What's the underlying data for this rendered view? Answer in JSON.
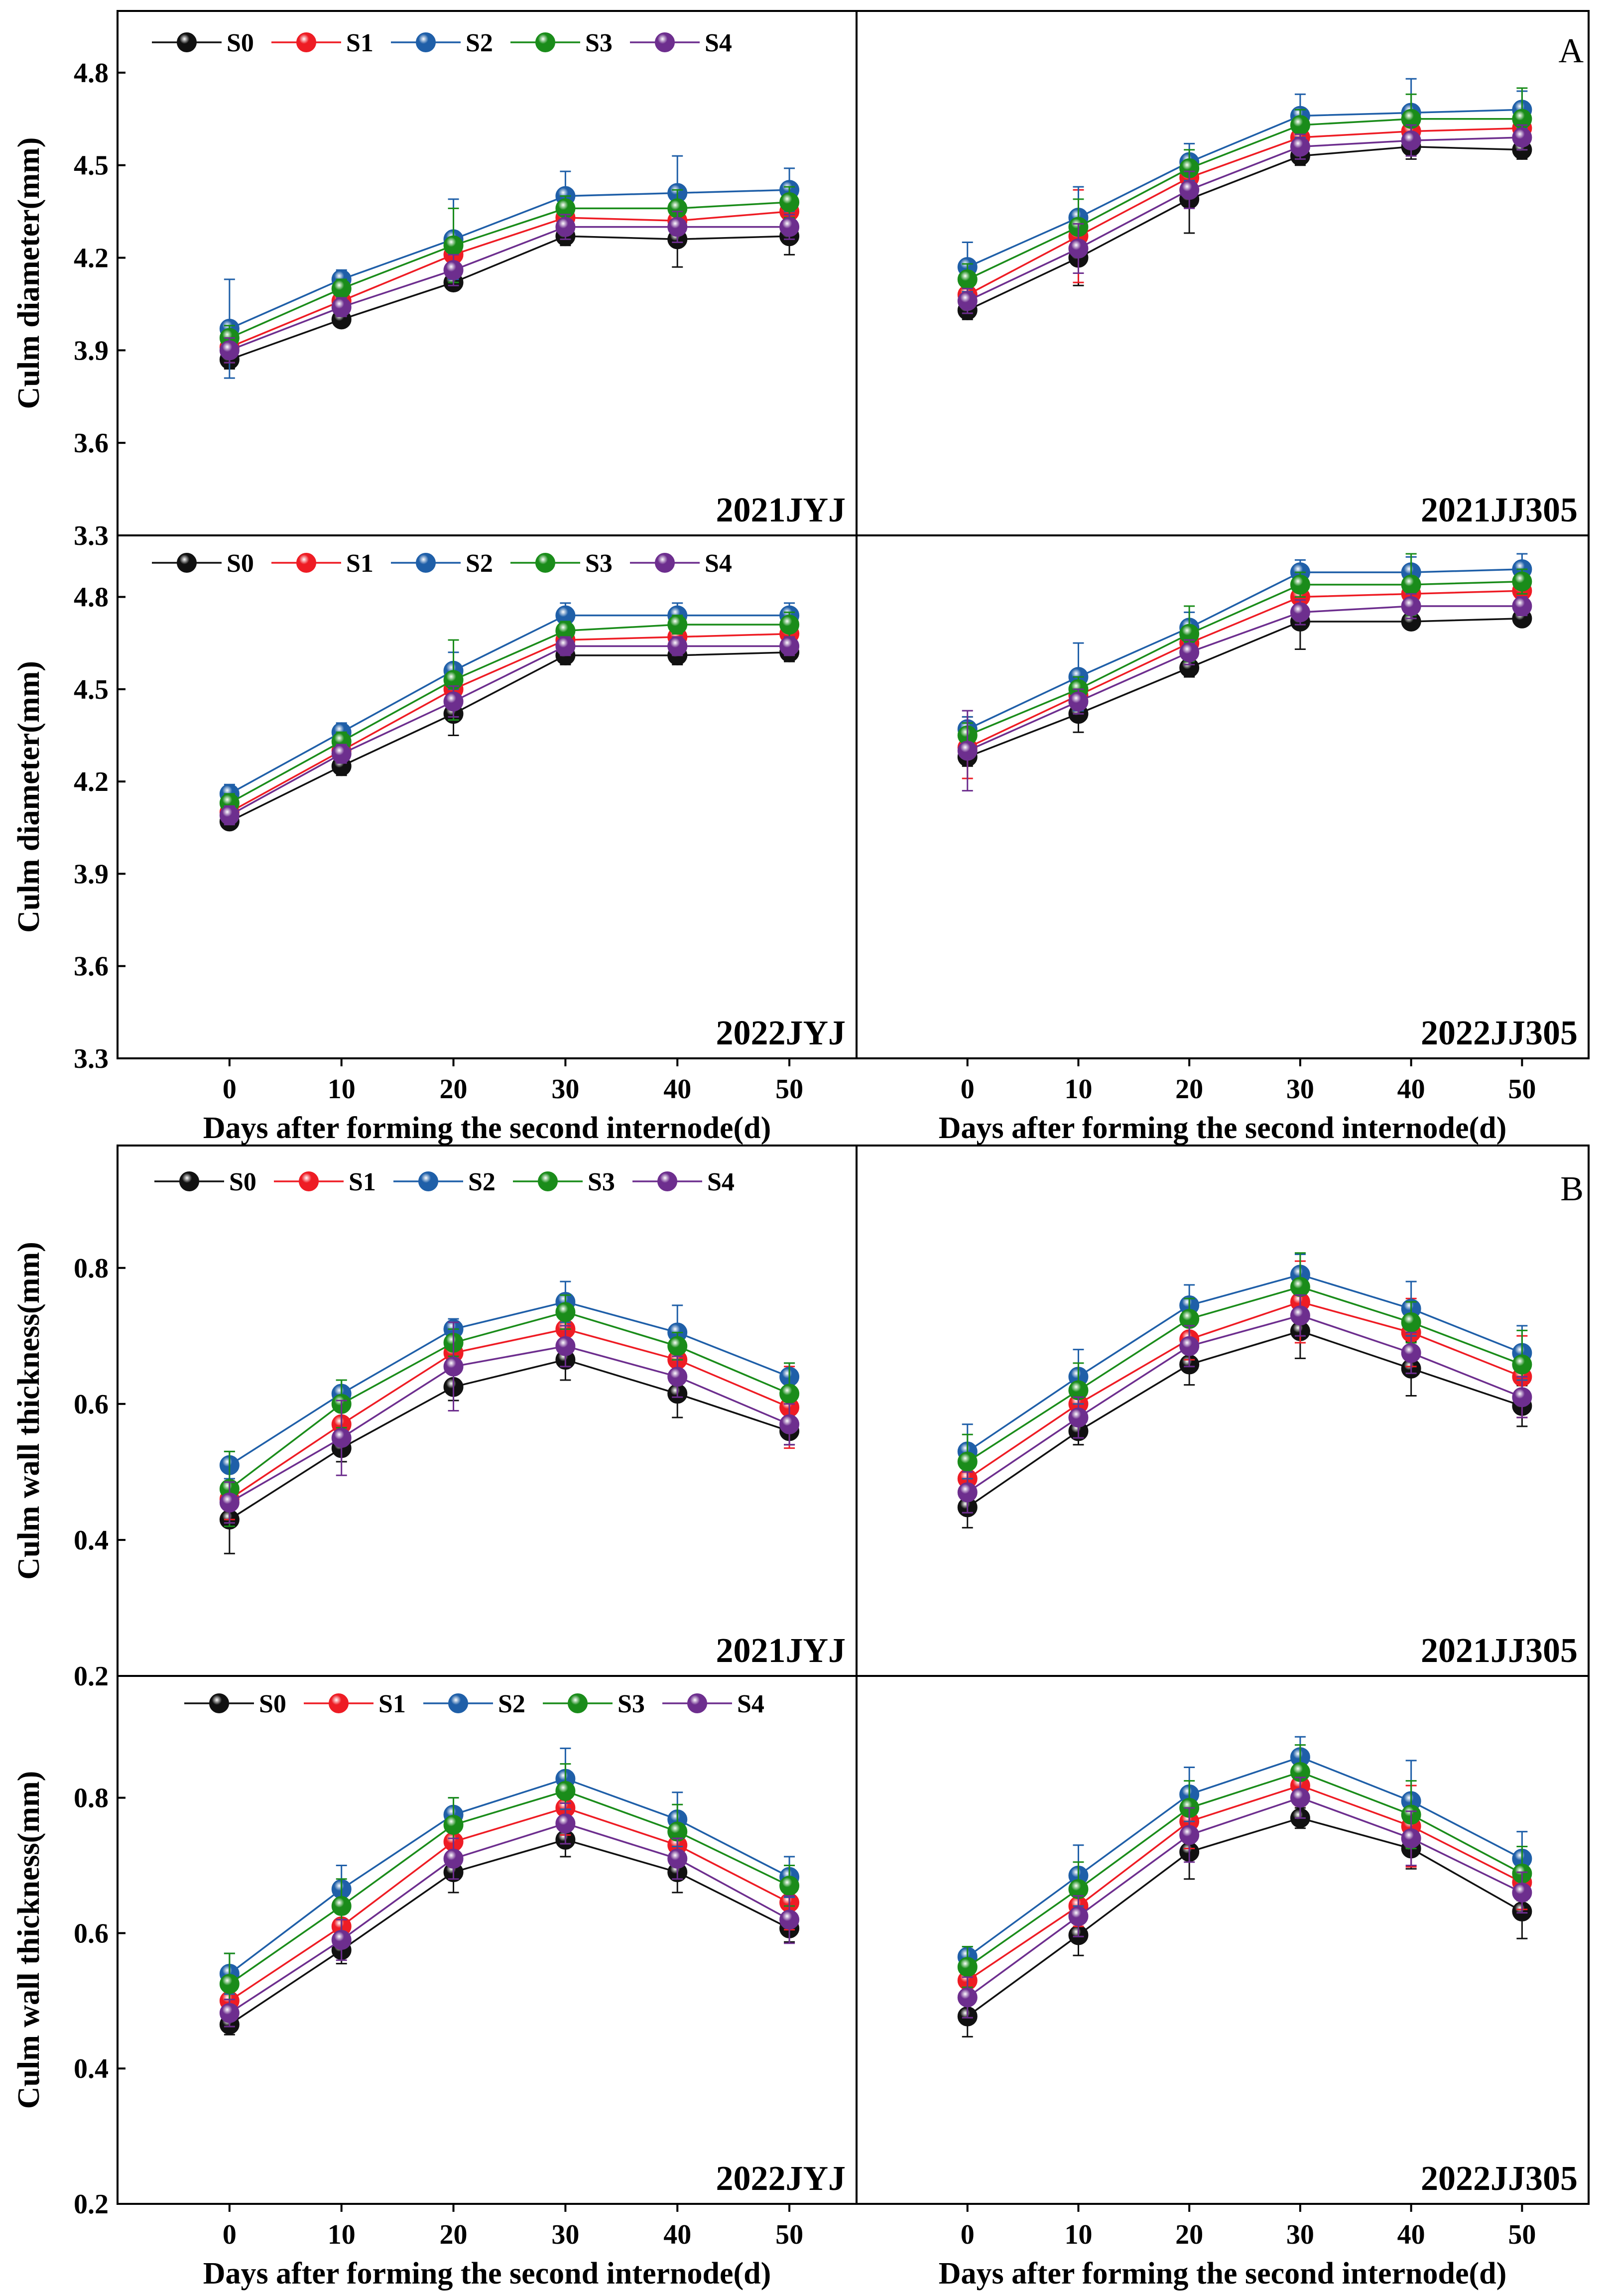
{
  "figure": {
    "section_labels": [
      "A",
      "B"
    ],
    "colors": {
      "S0": "#111111",
      "S1": "#ee1c24",
      "S2": "#1f5fa8",
      "S3": "#1a8c1a",
      "S4": "#6d2e8e"
    }
  },
  "chart_data": [
    {
      "id": "A-2021JYJ",
      "type": "line",
      "title": "2021JYJ",
      "xlabel": "",
      "ylabel": "Culm diameter(mm)",
      "x": [
        0,
        10,
        20,
        30,
        40,
        50
      ],
      "xlim": [
        -10,
        56
      ],
      "ylim": [
        3.3,
        5.0
      ],
      "yticks": [
        "3.3",
        "3.6",
        "3.9",
        "4.2",
        "4.5",
        "4.8"
      ],
      "legend": [
        "S0",
        "S1",
        "S2",
        "S3",
        "S4"
      ],
      "series": [
        {
          "name": "S0",
          "values": [
            3.87,
            4.0,
            4.12,
            4.27,
            4.26,
            4.27
          ],
          "errors": [
            0.03,
            0.02,
            0.02,
            0.03,
            0.09,
            0.06
          ]
        },
        {
          "name": "S1",
          "values": [
            3.91,
            4.06,
            4.21,
            4.33,
            4.32,
            4.35
          ],
          "errors": [
            0.05,
            0.02,
            0.04,
            0.03,
            0.04,
            0.04
          ]
        },
        {
          "name": "S2",
          "values": [
            3.97,
            4.13,
            4.26,
            4.4,
            4.41,
            4.42
          ],
          "errors": [
            0.16,
            0.03,
            0.13,
            0.08,
            0.12,
            0.07
          ]
        },
        {
          "name": "S3",
          "values": [
            3.94,
            4.1,
            4.24,
            4.36,
            4.36,
            4.38
          ],
          "errors": [
            0.04,
            0.03,
            0.12,
            0.04,
            0.06,
            0.05
          ]
        },
        {
          "name": "S4",
          "values": [
            3.9,
            4.04,
            4.16,
            4.3,
            4.3,
            4.3
          ],
          "errors": [
            0.04,
            0.03,
            0.05,
            0.04,
            0.05,
            0.04
          ]
        }
      ]
    },
    {
      "id": "A-2021JJ305",
      "type": "line",
      "title": "2021JJ305",
      "xlabel": "",
      "ylabel": "",
      "x": [
        0,
        10,
        20,
        30,
        40,
        50
      ],
      "xlim": [
        -10,
        56
      ],
      "ylim": [
        3.3,
        5.0
      ],
      "yticks": [],
      "series": [
        {
          "name": "S0",
          "values": [
            4.03,
            4.2,
            4.39,
            4.53,
            4.56,
            4.55
          ],
          "errors": [
            0.03,
            0.09,
            0.11,
            0.03,
            0.04,
            0.03
          ]
        },
        {
          "name": "S1",
          "values": [
            4.08,
            4.27,
            4.46,
            4.59,
            4.61,
            4.62
          ],
          "errors": [
            0.04,
            0.15,
            0.05,
            0.04,
            0.04,
            0.04
          ]
        },
        {
          "name": "S2",
          "values": [
            4.17,
            4.33,
            4.51,
            4.66,
            4.67,
            4.68
          ],
          "errors": [
            0.08,
            0.1,
            0.06,
            0.07,
            0.11,
            0.06
          ]
        },
        {
          "name": "S3",
          "values": [
            4.13,
            4.3,
            4.49,
            4.63,
            4.65,
            4.65
          ],
          "errors": [
            0.05,
            0.09,
            0.06,
            0.05,
            0.08,
            0.1
          ]
        },
        {
          "name": "S4",
          "values": [
            4.06,
            4.23,
            4.42,
            4.56,
            4.58,
            4.59
          ],
          "errors": [
            0.04,
            0.08,
            0.06,
            0.04,
            0.05,
            0.04
          ]
        }
      ]
    },
    {
      "id": "A-2022JYJ",
      "type": "line",
      "title": "2022JYJ",
      "xlabel": "Days after forming the second internode(d)",
      "ylabel": "Culm diameter(mm)",
      "x": [
        0,
        10,
        20,
        30,
        40,
        50
      ],
      "xlim": [
        -10,
        56
      ],
      "ylim": [
        3.3,
        5.0
      ],
      "yticks": [
        "3.3",
        "3.6",
        "3.9",
        "4.2",
        "4.5",
        "4.8"
      ],
      "xticks": [
        "0",
        "10",
        "20",
        "30",
        "40",
        "50"
      ],
      "legend": [
        "S0",
        "S1",
        "S2",
        "S3",
        "S4"
      ],
      "series": [
        {
          "name": "S0",
          "values": [
            4.07,
            4.25,
            4.42,
            4.61,
            4.61,
            4.62
          ],
          "errors": [
            0.02,
            0.03,
            0.07,
            0.03,
            0.03,
            0.03
          ]
        },
        {
          "name": "S1",
          "values": [
            4.1,
            4.3,
            4.5,
            4.66,
            4.67,
            4.68
          ],
          "errors": [
            0.03,
            0.03,
            0.05,
            0.03,
            0.03,
            0.03
          ]
        },
        {
          "name": "S2",
          "values": [
            4.16,
            4.36,
            4.56,
            4.74,
            4.74,
            4.74
          ],
          "errors": [
            0.03,
            0.03,
            0.06,
            0.04,
            0.04,
            0.04
          ]
        },
        {
          "name": "S3",
          "values": [
            4.13,
            4.33,
            4.53,
            4.69,
            4.71,
            4.71
          ],
          "errors": [
            0.03,
            0.03,
            0.13,
            0.03,
            0.03,
            0.04
          ]
        },
        {
          "name": "S4",
          "values": [
            4.09,
            4.29,
            4.46,
            4.64,
            4.64,
            4.64
          ],
          "errors": [
            0.03,
            0.03,
            0.05,
            0.03,
            0.03,
            0.03
          ]
        }
      ]
    },
    {
      "id": "A-2022JJ305",
      "type": "line",
      "title": "2022JJ305",
      "xlabel": "Days after forming the second internode(d)",
      "ylabel": "",
      "x": [
        0,
        10,
        20,
        30,
        40,
        50
      ],
      "xlim": [
        -10,
        56
      ],
      "ylim": [
        3.3,
        5.0
      ],
      "yticks": [],
      "xticks": [
        "0",
        "10",
        "20",
        "30",
        "40",
        "50"
      ],
      "series": [
        {
          "name": "S0",
          "values": [
            4.28,
            4.42,
            4.57,
            4.72,
            4.72,
            4.73
          ],
          "errors": [
            0.03,
            0.06,
            0.03,
            0.09,
            0.02,
            0.02
          ]
        },
        {
          "name": "S1",
          "values": [
            4.31,
            4.48,
            4.65,
            4.8,
            4.81,
            4.82
          ],
          "errors": [
            0.1,
            0.05,
            0.04,
            0.03,
            0.03,
            0.03
          ]
        },
        {
          "name": "S2",
          "values": [
            4.37,
            4.54,
            4.7,
            4.88,
            4.88,
            4.89
          ],
          "errors": [
            0.04,
            0.11,
            0.05,
            0.04,
            0.05,
            0.05
          ]
        },
        {
          "name": "S3",
          "values": [
            4.35,
            4.5,
            4.68,
            4.84,
            4.84,
            4.85
          ],
          "errors": [
            0.04,
            0.04,
            0.09,
            0.04,
            0.1,
            0.04
          ]
        },
        {
          "name": "S4",
          "values": [
            4.3,
            4.46,
            4.62,
            4.75,
            4.77,
            4.77
          ],
          "errors": [
            0.13,
            0.04,
            0.04,
            0.04,
            0.04,
            0.03
          ]
        }
      ]
    },
    {
      "id": "B-2021JYJ",
      "type": "line",
      "title": "2021JYJ",
      "xlabel": "",
      "ylabel": "Culm wall thickness(mm)",
      "x": [
        0,
        10,
        20,
        30,
        40,
        50
      ],
      "xlim": [
        -10,
        56
      ],
      "ylim": [
        0.2,
        0.98
      ],
      "yticks": [
        "0.2",
        "0.4",
        "0.6",
        "0.8"
      ],
      "legend": [
        "S0",
        "S1",
        "S2",
        "S3",
        "S4"
      ],
      "series": [
        {
          "name": "S0",
          "values": [
            0.43,
            0.535,
            0.625,
            0.665,
            0.615,
            0.56
          ],
          "errors": [
            0.05,
            0.02,
            0.02,
            0.03,
            0.035,
            0.02
          ]
        },
        {
          "name": "S1",
          "values": [
            0.46,
            0.57,
            0.675,
            0.71,
            0.665,
            0.595
          ],
          "errors": [
            0.03,
            0.03,
            0.02,
            0.02,
            0.03,
            0.06
          ]
        },
        {
          "name": "S2",
          "values": [
            0.51,
            0.615,
            0.71,
            0.75,
            0.705,
            0.64
          ],
          "errors": [
            0.02,
            0.02,
            0.015,
            0.03,
            0.04,
            0.02
          ]
        },
        {
          "name": "S3",
          "values": [
            0.475,
            0.6,
            0.69,
            0.735,
            0.685,
            0.615
          ],
          "errors": [
            0.055,
            0.035,
            0.02,
            0.025,
            0.02,
            0.045
          ]
        },
        {
          "name": "S4",
          "values": [
            0.455,
            0.55,
            0.655,
            0.685,
            0.64,
            0.57
          ],
          "errors": [
            0.03,
            0.055,
            0.065,
            0.03,
            0.03,
            0.03
          ]
        }
      ]
    },
    {
      "id": "B-2021JJ305",
      "type": "line",
      "title": "2021JJ305",
      "xlabel": "",
      "ylabel": "",
      "x": [
        0,
        10,
        20,
        30,
        40,
        50
      ],
      "xlim": [
        -10,
        56
      ],
      "ylim": [
        0.2,
        0.98
      ],
      "yticks": [],
      "series": [
        {
          "name": "S0",
          "values": [
            0.448,
            0.56,
            0.658,
            0.707,
            0.652,
            0.597
          ],
          "errors": [
            0.03,
            0.02,
            0.03,
            0.04,
            0.04,
            0.03
          ]
        },
        {
          "name": "S1",
          "values": [
            0.49,
            0.6,
            0.695,
            0.75,
            0.705,
            0.64
          ],
          "errors": [
            0.03,
            0.02,
            0.03,
            0.06,
            0.05,
            0.06
          ]
        },
        {
          "name": "S2",
          "values": [
            0.53,
            0.64,
            0.745,
            0.79,
            0.74,
            0.675
          ],
          "errors": [
            0.04,
            0.04,
            0.03,
            0.03,
            0.04,
            0.04
          ]
        },
        {
          "name": "S3",
          "values": [
            0.515,
            0.62,
            0.725,
            0.772,
            0.72,
            0.658
          ],
          "errors": [
            0.04,
            0.04,
            0.03,
            0.05,
            0.03,
            0.05
          ]
        },
        {
          "name": "S4",
          "values": [
            0.47,
            0.58,
            0.685,
            0.73,
            0.675,
            0.61
          ],
          "errors": [
            0.03,
            0.03,
            0.03,
            0.03,
            0.03,
            0.03
          ]
        }
      ]
    },
    {
      "id": "B-2022JYJ",
      "type": "line",
      "title": "2022JYJ",
      "xlabel": "Days after forming the second internode(d)",
      "ylabel": "Culm wall thickness(mm)",
      "x": [
        0,
        10,
        20,
        30,
        40,
        50
      ],
      "xlim": [
        -10,
        56
      ],
      "ylim": [
        0.2,
        0.98
      ],
      "yticks": [
        "0.2",
        "0.4",
        "0.6",
        "0.8"
      ],
      "xticks": [
        "0",
        "10",
        "20",
        "30",
        "40",
        "50"
      ],
      "legend": [
        "S0",
        "S1",
        "S2",
        "S3",
        "S4"
      ],
      "series": [
        {
          "name": "S0",
          "values": [
            0.465,
            0.575,
            0.69,
            0.738,
            0.69,
            0.607
          ],
          "errors": [
            0.015,
            0.02,
            0.03,
            0.025,
            0.03,
            0.02
          ]
        },
        {
          "name": "S1",
          "values": [
            0.5,
            0.61,
            0.735,
            0.785,
            0.73,
            0.645
          ],
          "errors": [
            0.02,
            0.03,
            0.03,
            0.04,
            0.03,
            0.04
          ]
        },
        {
          "name": "S2",
          "values": [
            0.54,
            0.665,
            0.775,
            0.828,
            0.768,
            0.683
          ],
          "errors": [
            0.03,
            0.035,
            0.025,
            0.045,
            0.04,
            0.03
          ]
        },
        {
          "name": "S3",
          "values": [
            0.525,
            0.64,
            0.76,
            0.81,
            0.75,
            0.67
          ],
          "errors": [
            0.045,
            0.04,
            0.04,
            0.04,
            0.04,
            0.03
          ]
        },
        {
          "name": "S4",
          "values": [
            0.482,
            0.59,
            0.71,
            0.762,
            0.71,
            0.62
          ],
          "errors": [
            0.02,
            0.03,
            0.03,
            0.03,
            0.03,
            0.035
          ]
        }
      ]
    },
    {
      "id": "B-2022JJ305",
      "type": "line",
      "title": "2022JJ305",
      "xlabel": "Days after forming the second internode(d)",
      "ylabel": "",
      "x": [
        0,
        10,
        20,
        30,
        40,
        50
      ],
      "xlim": [
        -10,
        56
      ],
      "ylim": [
        0.2,
        0.98
      ],
      "yticks": [],
      "xticks": [
        "0",
        "10",
        "20",
        "30",
        "40",
        "50"
      ],
      "series": [
        {
          "name": "S0",
          "values": [
            0.477,
            0.597,
            0.72,
            0.77,
            0.725,
            0.632
          ],
          "errors": [
            0.03,
            0.03,
            0.04,
            0.015,
            0.03,
            0.04
          ]
        },
        {
          "name": "S1",
          "values": [
            0.53,
            0.64,
            0.765,
            0.818,
            0.758,
            0.675
          ],
          "errors": [
            0.03,
            0.03,
            0.04,
            0.03,
            0.06,
            0.04
          ]
        },
        {
          "name": "S2",
          "values": [
            0.565,
            0.685,
            0.805,
            0.86,
            0.795,
            0.71
          ],
          "errors": [
            0.015,
            0.045,
            0.04,
            0.03,
            0.06,
            0.04
          ]
        },
        {
          "name": "S3",
          "values": [
            0.55,
            0.665,
            0.785,
            0.838,
            0.775,
            0.688
          ],
          "errors": [
            0.03,
            0.04,
            0.04,
            0.04,
            0.05,
            0.04
          ]
        },
        {
          "name": "S4",
          "values": [
            0.505,
            0.625,
            0.745,
            0.8,
            0.74,
            0.66
          ],
          "errors": [
            0.03,
            0.03,
            0.04,
            0.03,
            0.04,
            0.03
          ]
        }
      ]
    }
  ]
}
